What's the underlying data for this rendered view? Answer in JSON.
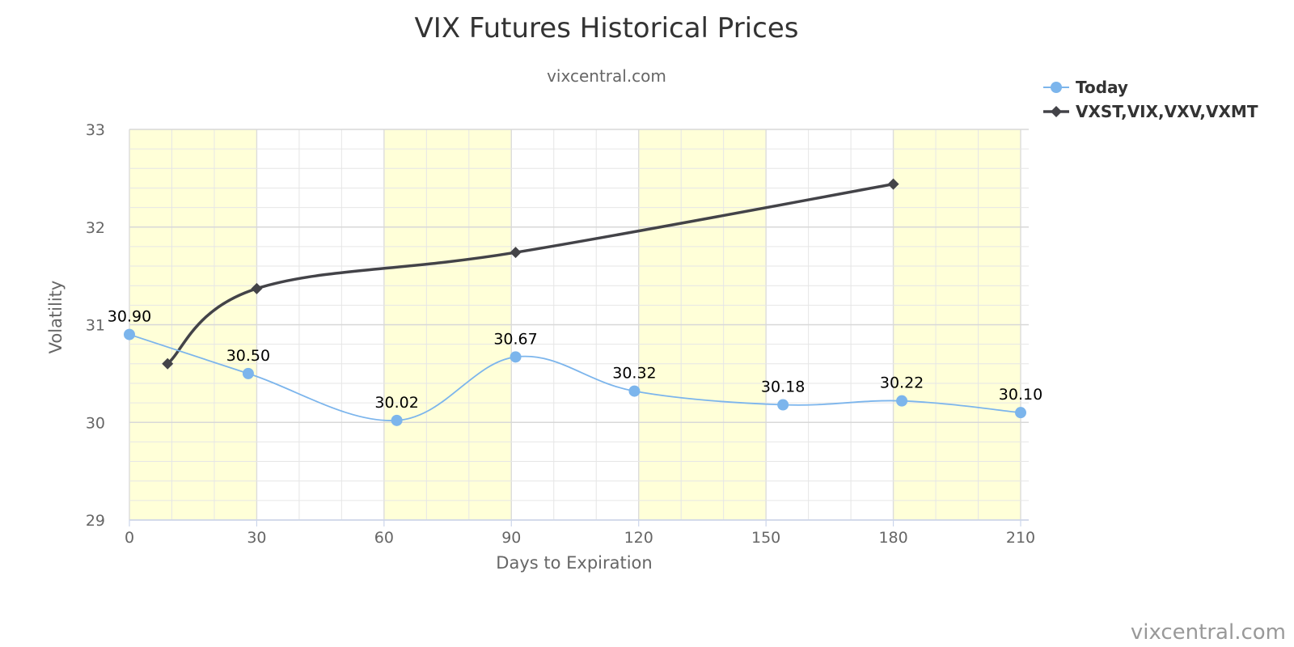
{
  "chart_data": {
    "type": "line",
    "title": "VIX Futures Historical Prices",
    "subtitle": "vixcentral.com",
    "xlabel": "Days to Expiration",
    "ylabel": "Volatility",
    "xlim": [
      0,
      210
    ],
    "ylim": [
      29,
      33
    ],
    "x_ticks": [
      0,
      30,
      60,
      90,
      120,
      150,
      180,
      210
    ],
    "y_ticks": [
      29,
      30,
      31,
      32,
      33
    ],
    "shaded_x_bands": [
      [
        0,
        30
      ],
      [
        60,
        90
      ],
      [
        120,
        150
      ],
      [
        180,
        210
      ]
    ],
    "grid": true,
    "legend_position": "top-right",
    "credit": "vixcentral.com",
    "series": [
      {
        "name": "Today",
        "color": "#7cb5ec",
        "marker": "circle",
        "smooth": true,
        "show_labels": true,
        "points": [
          {
            "x": 0,
            "y": 30.9,
            "label": "30.90"
          },
          {
            "x": 28,
            "y": 30.5,
            "label": "30.50"
          },
          {
            "x": 63,
            "y": 30.02,
            "label": "30.02"
          },
          {
            "x": 91,
            "y": 30.67,
            "label": "30.67"
          },
          {
            "x": 119,
            "y": 30.32,
            "label": "30.32"
          },
          {
            "x": 154,
            "y": 30.18,
            "label": "30.18"
          },
          {
            "x": 182,
            "y": 30.22,
            "label": "30.22"
          },
          {
            "x": 210,
            "y": 30.1,
            "label": "30.10"
          }
        ]
      },
      {
        "name": "VXST,VIX,VXV,VXMT",
        "color": "#434348",
        "marker": "diamond",
        "smooth": true,
        "show_labels": false,
        "points": [
          {
            "x": 9,
            "y": 30.6
          },
          {
            "x": 30,
            "y": 31.37
          },
          {
            "x": 91,
            "y": 31.74
          },
          {
            "x": 180,
            "y": 32.44
          }
        ]
      }
    ]
  }
}
